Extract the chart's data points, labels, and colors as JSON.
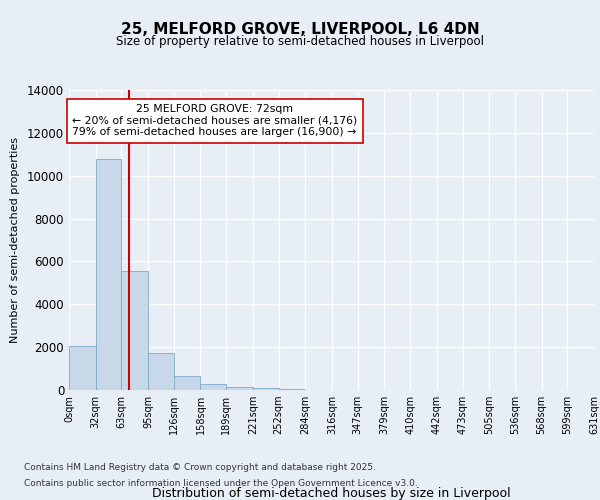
{
  "title": "25, MELFORD GROVE, LIVERPOOL, L6 4DN",
  "subtitle": "Size of property relative to semi-detached houses in Liverpool",
  "xlabel": "Distribution of semi-detached houses by size in Liverpool",
  "ylabel": "Number of semi-detached properties",
  "annotation_title": "25 MELFORD GROVE: 72sqm",
  "annotation_line1": "← 20% of semi-detached houses are smaller (4,176)",
  "annotation_line2": "79% of semi-detached houses are larger (16,900) →",
  "footer_line1": "Contains HM Land Registry data © Crown copyright and database right 2025.",
  "footer_line2": "Contains public sector information licensed under the Open Government Licence v3.0.",
  "property_size": 72,
  "bar_edges": [
    0,
    32,
    63,
    95,
    126,
    158,
    189,
    221,
    252,
    284,
    316,
    347,
    379,
    410,
    442,
    473,
    505,
    536,
    568,
    599,
    631
  ],
  "bar_values": [
    2050,
    10800,
    5550,
    1750,
    650,
    300,
    150,
    80,
    40,
    0,
    0,
    0,
    0,
    0,
    0,
    0,
    0,
    0,
    0,
    0
  ],
  "bar_color": "#c8d8e8",
  "bar_edgecolor": "#7aaac8",
  "vline_color": "#cc0000",
  "background_color": "#e8eef5",
  "plot_bg_color": "#e8eef5",
  "ylim": [
    0,
    14000
  ],
  "yticks": [
    0,
    2000,
    4000,
    6000,
    8000,
    10000,
    12000,
    14000
  ]
}
